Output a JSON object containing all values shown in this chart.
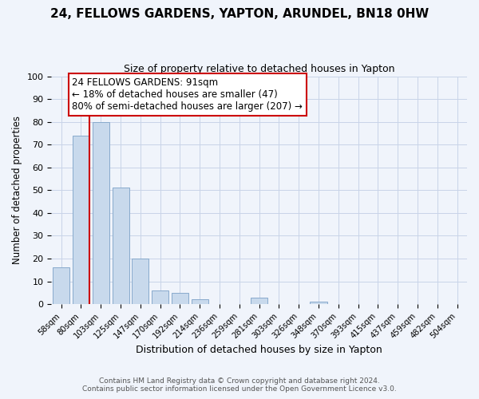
{
  "title": "24, FELLOWS GARDENS, YAPTON, ARUNDEL, BN18 0HW",
  "subtitle": "Size of property relative to detached houses in Yapton",
  "xlabel": "Distribution of detached houses by size in Yapton",
  "ylabel": "Number of detached properties",
  "bar_labels": [
    "58sqm",
    "80sqm",
    "103sqm",
    "125sqm",
    "147sqm",
    "170sqm",
    "192sqm",
    "214sqm",
    "236sqm",
    "259sqm",
    "281sqm",
    "303sqm",
    "326sqm",
    "348sqm",
    "370sqm",
    "393sqm",
    "415sqm",
    "437sqm",
    "459sqm",
    "482sqm",
    "504sqm"
  ],
  "bar_heights": [
    16,
    74,
    80,
    51,
    20,
    6,
    5,
    2,
    0,
    0,
    3,
    0,
    0,
    1,
    0,
    0,
    0,
    0,
    0,
    0,
    0
  ],
  "bar_color": "#c8d9ec",
  "bar_edgecolor": "#88aacc",
  "ylim": [
    0,
    100
  ],
  "yticks": [
    0,
    10,
    20,
    30,
    40,
    50,
    60,
    70,
    80,
    90,
    100
  ],
  "vline_color": "#cc0000",
  "vline_x": 1.42,
  "annotation_title": "24 FELLOWS GARDENS: 91sqm",
  "annotation_line1": "← 18% of detached houses are smaller (47)",
  "annotation_line2": "80% of semi-detached houses are larger (207) →",
  "annotation_box_color": "#ffffff",
  "annotation_box_edgecolor": "#cc0000",
  "footer1": "Contains HM Land Registry data © Crown copyright and database right 2024.",
  "footer2": "Contains public sector information licensed under the Open Government Licence v3.0.",
  "background_color": "#f0f4fb",
  "grid_color": "#c8d4e8"
}
